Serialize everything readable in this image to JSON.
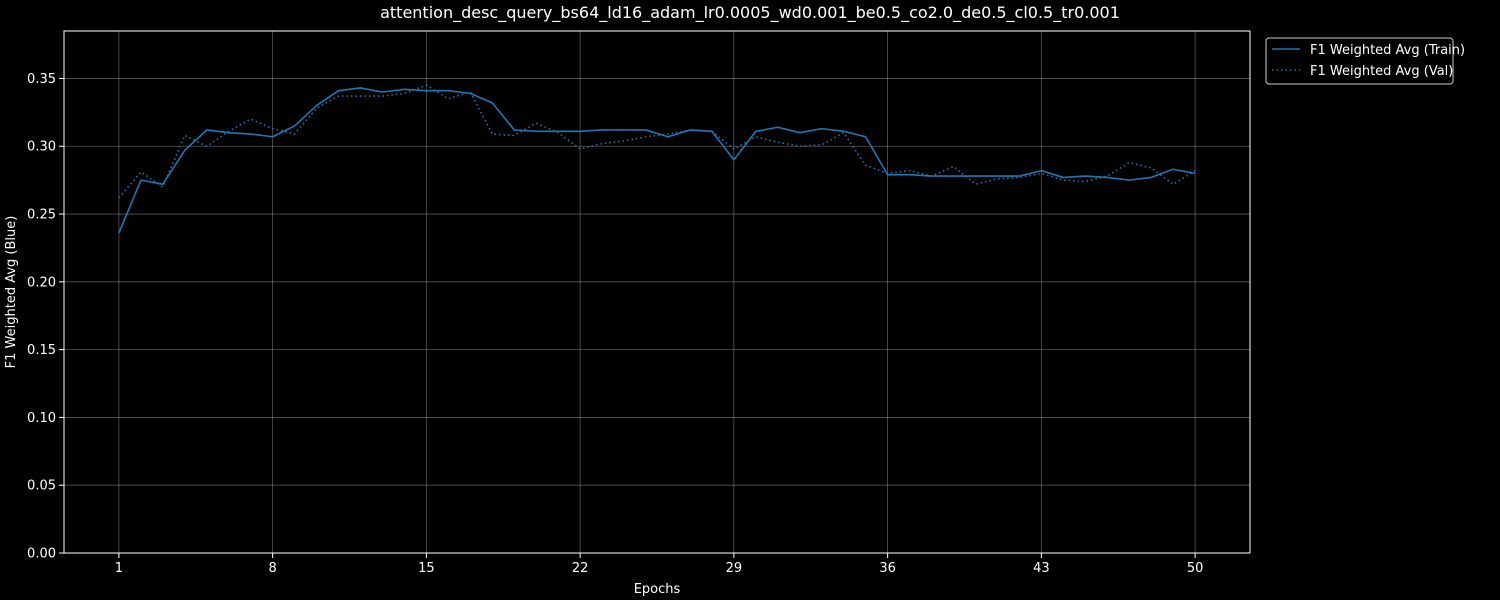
{
  "chart_data": {
    "type": "line",
    "title": "attention_desc_query_bs64_ld16_adam_lr0.0005_wd0.001_be0.5_co2.0_de0.5_cl0.5_tr0.001",
    "xlabel": "Epochs",
    "ylabel": "F1 Weighted Avg (Blue)",
    "xlim": [
      -1.5,
      52.5
    ],
    "ylim": [
      0.0,
      0.385
    ],
    "xticks": [
      1,
      8,
      15,
      22,
      29,
      36,
      43,
      50
    ],
    "yticks": [
      0.0,
      0.05,
      0.1,
      0.15,
      0.2,
      0.25,
      0.3,
      0.35
    ],
    "ytick_labels": [
      "0.00",
      "0.05",
      "0.10",
      "0.15",
      "0.20",
      "0.25",
      "0.30",
      "0.35"
    ],
    "grid": true,
    "legend_position": "outside-top-right",
    "x": [
      1,
      2,
      3,
      4,
      5,
      6,
      7,
      8,
      9,
      10,
      11,
      12,
      13,
      14,
      15,
      16,
      17,
      18,
      19,
      20,
      21,
      22,
      23,
      24,
      25,
      26,
      27,
      28,
      29,
      30,
      31,
      32,
      33,
      34,
      35,
      36,
      37,
      38,
      39,
      40,
      41,
      42,
      43,
      44,
      45,
      46,
      47,
      48,
      49,
      50
    ],
    "series": [
      {
        "name": "F1 Weighted Avg (Train)",
        "color": "#1f77b4",
        "style": "solid",
        "values": [
          0.236,
          0.275,
          0.272,
          0.297,
          0.312,
          0.31,
          0.309,
          0.307,
          0.315,
          0.33,
          0.341,
          0.343,
          0.34,
          0.342,
          0.341,
          0.341,
          0.339,
          0.332,
          0.312,
          0.311,
          0.311,
          0.311,
          0.312,
          0.312,
          0.312,
          0.307,
          0.312,
          0.311,
          0.29,
          0.311,
          0.314,
          0.31,
          0.313,
          0.311,
          0.307,
          0.279,
          0.279,
          0.278,
          0.278,
          0.278,
          0.278,
          0.278,
          0.282,
          0.277,
          0.278,
          0.277,
          0.275,
          0.277,
          0.283,
          0.28
        ]
      },
      {
        "name": "F1 Weighted Avg (Val)",
        "color": "#1f77b4",
        "style": "dotted",
        "values": [
          0.262,
          0.281,
          0.27,
          0.308,
          0.3,
          0.311,
          0.32,
          0.313,
          0.309,
          0.328,
          0.337,
          0.337,
          0.337,
          0.339,
          0.345,
          0.335,
          0.34,
          0.309,
          0.308,
          0.317,
          0.31,
          0.298,
          0.302,
          0.304,
          0.307,
          0.309,
          0.312,
          0.311,
          0.298,
          0.307,
          0.303,
          0.3,
          0.301,
          0.31,
          0.286,
          0.28,
          0.282,
          0.278,
          0.285,
          0.272,
          0.276,
          0.277,
          0.28,
          0.275,
          0.274,
          0.278,
          0.288,
          0.284,
          0.272,
          0.282
        ]
      }
    ]
  }
}
